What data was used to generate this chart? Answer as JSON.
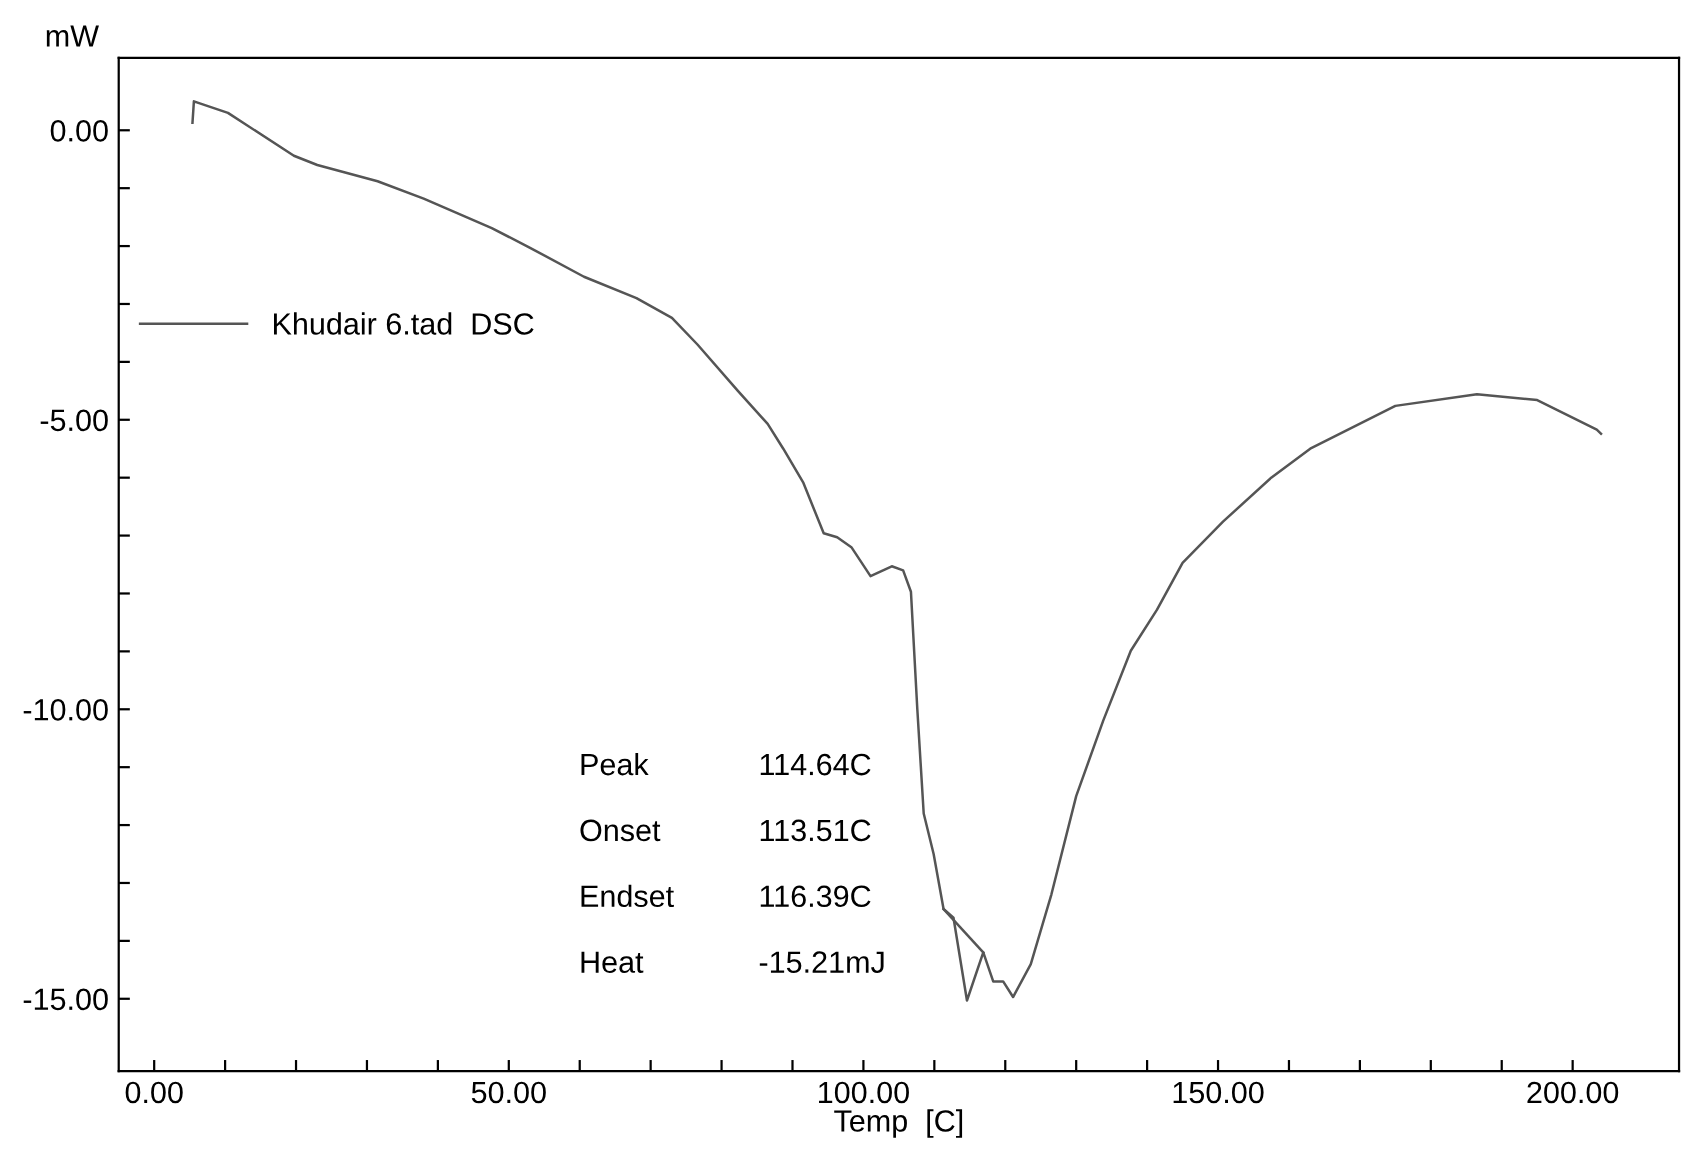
{
  "chart_data": {
    "type": "line",
    "xlabel": "Temp  [C]",
    "ylabel": "mW",
    "series": [
      {
        "name": "Khudair 6.tad  DSC",
        "color": "#555555",
        "x": [
          5.4,
          5.6,
          10.4,
          19.7,
          23,
          31.5,
          38,
          47.6,
          53,
          60.6,
          68,
          73,
          76.6,
          82.3,
          86.5,
          88.7,
          91.5,
          94.4,
          96.3,
          98.3,
          101,
          104,
          105.6,
          106.7,
          107.6,
          108.5,
          109.9,
          111.3,
          112.7,
          114.6,
          116.9,
          118.3,
          119.7,
          121.1,
          123.6,
          126.5,
          130,
          133.8,
          137.7,
          141.4,
          145,
          150.7,
          157.5,
          163,
          175,
          186.5,
          195,
          203.4,
          204
        ],
        "values": [
          0.13,
          0.5,
          0.3,
          -0.44,
          -0.6,
          -0.88,
          -1.18,
          -1.69,
          -2.03,
          -2.53,
          -2.9,
          -3.24,
          -3.7,
          -4.5,
          -5.07,
          -5.5,
          -6.08,
          -6.96,
          -7.03,
          -7.2,
          -7.7,
          -7.53,
          -7.6,
          -7.97,
          -10.0,
          -11.8,
          -12.5,
          -13.45,
          -13.6,
          -15.03,
          -14.2,
          -14.7,
          -14.7,
          -14.97,
          -14.4,
          -13.2,
          -11.5,
          -10.2,
          -8.99,
          -8.28,
          -7.47,
          -6.76,
          -6.0,
          -5.5,
          -4.76,
          -4.56,
          -4.66,
          -5.17,
          -5.24
        ]
      },
      {
        "color": "#555555",
        "x": [
          111.3,
          116.9
        ],
        "values": [
          -13.45,
          -14.2
        ]
      }
    ],
    "xlim": [
      -5,
      215
    ],
    "ylim": [
      -16.25,
      1.25
    ],
    "xticks": [
      {
        "value": 0,
        "label": "0.00"
      },
      {
        "value": 10,
        "label": null
      },
      {
        "value": 20,
        "label": null
      },
      {
        "value": 30,
        "label": null
      },
      {
        "value": 40,
        "label": null
      },
      {
        "value": 50,
        "label": "50.00"
      },
      {
        "value": 60,
        "label": null
      },
      {
        "value": 70,
        "label": null
      },
      {
        "value": 80,
        "label": null
      },
      {
        "value": 90,
        "label": null
      },
      {
        "value": 100,
        "label": "100.00"
      },
      {
        "value": 110,
        "label": null
      },
      {
        "value": 120,
        "label": null
      },
      {
        "value": 130,
        "label": null
      },
      {
        "value": 140,
        "label": null
      },
      {
        "value": 150,
        "label": "150.00"
      },
      {
        "value": 160,
        "label": null
      },
      {
        "value": 170,
        "label": null
      },
      {
        "value": 180,
        "label": null
      },
      {
        "value": 190,
        "label": null
      },
      {
        "value": 200,
        "label": "200.00"
      }
    ],
    "yticks": [
      {
        "value": 0,
        "label": "0.00"
      },
      {
        "value": -1,
        "label": null
      },
      {
        "value": -2,
        "label": null
      },
      {
        "value": -3,
        "label": null
      },
      {
        "value": -4,
        "label": null
      },
      {
        "value": -5,
        "label": "-5.00"
      },
      {
        "value": -6,
        "label": null
      },
      {
        "value": -7,
        "label": null
      },
      {
        "value": -8,
        "label": null
      },
      {
        "value": -9,
        "label": null
      },
      {
        "value": -10,
        "label": "-10.00"
      },
      {
        "value": -11,
        "label": null
      },
      {
        "value": -12,
        "label": null
      },
      {
        "value": -13,
        "label": null
      },
      {
        "value": -14,
        "label": null
      },
      {
        "value": -15,
        "label": "-15.00"
      }
    ],
    "legend": "top left",
    "line_style": "solid",
    "annotations": [
      "Peak",
      "114.64C",
      "Onset",
      "113.51C",
      "Endset",
      "116.39C",
      "Heat",
      "-15.21mJ"
    ]
  }
}
